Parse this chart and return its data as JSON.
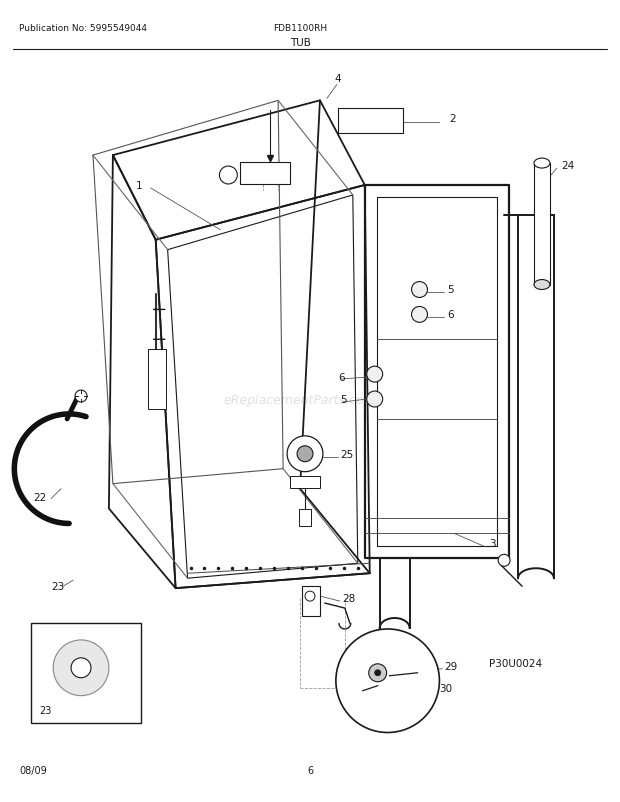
{
  "title_left": "Publication No: 5995549044",
  "title_center": "FDB1100RH",
  "title_sub": "TUB",
  "footer_left": "08/09",
  "footer_center": "6",
  "watermark": "eReplacementParts.com",
  "part_code": "P30U0024",
  "bg_color": "#ffffff",
  "line_color": "#1a1a1a",
  "label_color": "#1a1a1a"
}
